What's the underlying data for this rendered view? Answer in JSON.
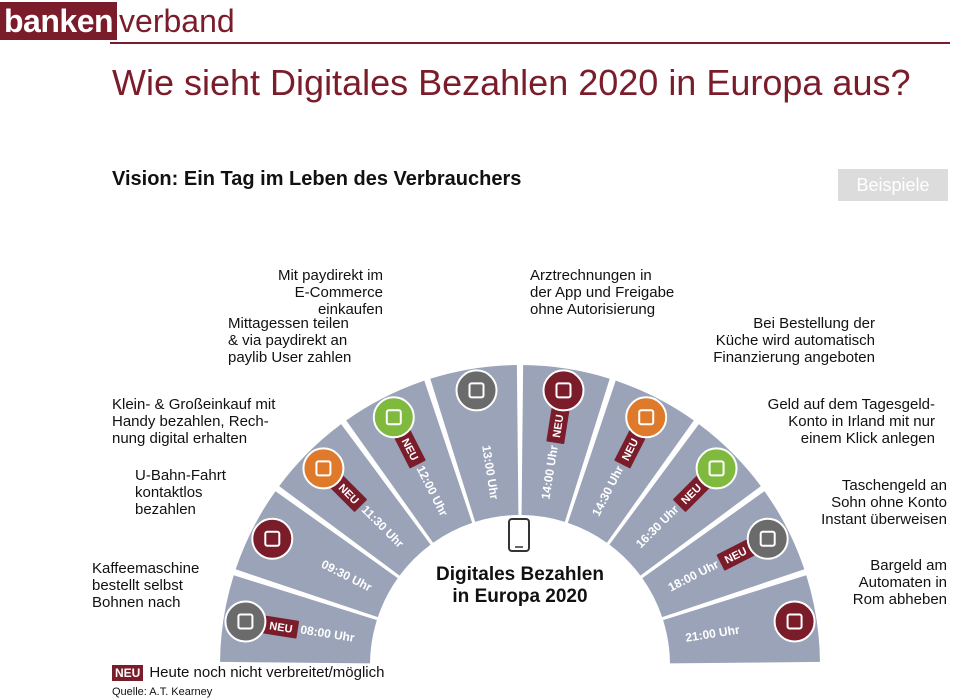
{
  "header": {
    "logo_part1": "banken",
    "logo_part2": "verband",
    "title": "Wie sieht Digitales Bezahlen 2020 in Europa aus?",
    "subtitle": "Vision: Ein Tag im Leben des Verbrauchers",
    "button": "Beispiele"
  },
  "center": {
    "title": "Digitales Bezahlen\nin Europa 2020",
    "icon": "smartphone-icon"
  },
  "colors": {
    "brand": "#7b1c2b",
    "sector": "#9aa3b8",
    "orange": "#e07a2b",
    "green": "#7fba3e",
    "grey_icon": "#6b6b6b"
  },
  "segments": [
    {
      "time": "08:00 Uhr",
      "neu": true,
      "icon": "coffee-icon",
      "icon_color": "#6b6b6b",
      "label": "Kaffeemaschine\nbestellt selbst\nBohnen nach"
    },
    {
      "time": "09:30 Uhr",
      "neu": false,
      "icon": "bus-icon",
      "icon_color": "#7b1c2b",
      "label": "U-Bahn-Fahrt\nkontaktlos\nbezahlen"
    },
    {
      "time": "11:30 Uhr",
      "neu": true,
      "icon": "steak-icon",
      "icon_color": "#e07a2b",
      "label": "Klein- & Großeinkauf mit\nHandy bezahlen, Rech-\nnung digital erhalten"
    },
    {
      "time": "12:00 Uhr",
      "neu": true,
      "icon": "money-icon",
      "icon_color": "#7fba3e",
      "label": "Mittagessen teilen\n& via paydirekt an\npaylib User zahlen"
    },
    {
      "time": "13:00 Uhr",
      "neu": false,
      "icon": "tablet-icon",
      "icon_color": "#6b6b6b",
      "label": "Mit paydirekt im\nE-Commerce\neinkaufen"
    },
    {
      "time": "14:00 Uhr",
      "neu": true,
      "icon": "medical-icon",
      "icon_color": "#7b1c2b",
      "label": "Arztrechnungen in\nder App und Freigabe\nohne Autorisierung"
    },
    {
      "time": "14:30 Uhr",
      "neu": true,
      "icon": "rolling-pin-icon",
      "icon_color": "#e07a2b",
      "label": "Bei Bestellung der\nKüche wird automatisch\nFinanzierung angeboten"
    },
    {
      "time": "16:30 Uhr",
      "neu": true,
      "icon": "document-icon",
      "icon_color": "#7fba3e",
      "label": "Geld auf dem Tagesgeld-\nKonto in Irland mit nur\neinem Klick anlegen"
    },
    {
      "time": "18:00 Uhr",
      "neu": true,
      "icon": "person-icon",
      "icon_color": "#6b6b6b",
      "label": "Taschengeld an\nSohn ohne Konto\nInstant überweisen"
    },
    {
      "time": "21:00 Uhr",
      "neu": false,
      "icon": "euro-banknote-icon",
      "icon_color": "#7b1c2b",
      "label": "Bargeld am\nAutomaten in\nRom abheben"
    }
  ],
  "neu_text": "NEU",
  "legend": {
    "badge": "NEU",
    "text": "Heute noch nicht verbreitet/möglich"
  },
  "source": "Quelle: A.T. Kearney"
}
